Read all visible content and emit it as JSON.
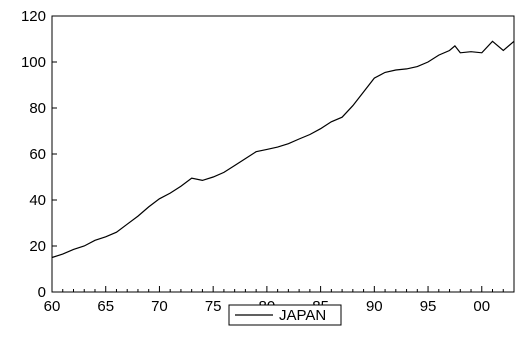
{
  "chart_data": {
    "type": "line",
    "title": "",
    "xlabel": "",
    "ylabel": "",
    "xlim": [
      1960,
      2003
    ],
    "ylim": [
      0,
      120
    ],
    "x_ticks": [
      1960,
      1965,
      1970,
      1975,
      1980,
      1985,
      1990,
      1995,
      2000
    ],
    "x_tick_labels": [
      "60",
      "65",
      "70",
      "75",
      "80",
      "85",
      "90",
      "95",
      "00"
    ],
    "y_ticks": [
      0,
      20,
      40,
      60,
      80,
      100,
      120
    ],
    "y_tick_labels": [
      "0",
      "20",
      "40",
      "60",
      "80",
      "100",
      "120"
    ],
    "grid": false,
    "legend_position": "bottom-center",
    "series": [
      {
        "name": "JAPAN",
        "color": "#000000",
        "x": [
          1960,
          1961,
          1962,
          1963,
          1964,
          1965,
          1966,
          1967,
          1968,
          1969,
          1970,
          1971,
          1972,
          1973,
          1974,
          1975,
          1976,
          1977,
          1978,
          1979,
          1980,
          1981,
          1982,
          1983,
          1984,
          1985,
          1986,
          1987,
          1988,
          1989,
          1990,
          1991,
          1992,
          1993,
          1994,
          1995,
          1996,
          1997,
          1997.5,
          1998,
          1999,
          2000,
          2001,
          2002,
          2003
        ],
        "y": [
          15,
          16.5,
          18.5,
          20,
          22.5,
          24,
          26,
          29.5,
          33,
          37,
          40.5,
          43,
          46,
          49.5,
          48.5,
          50,
          52,
          55,
          58,
          61,
          62,
          63,
          64.5,
          66.5,
          68.5,
          71,
          74,
          76,
          81,
          87,
          93,
          95.5,
          96.5,
          97,
          98,
          100,
          103,
          105,
          107,
          104,
          104.5,
          104,
          109,
          105,
          109
        ]
      }
    ]
  }
}
